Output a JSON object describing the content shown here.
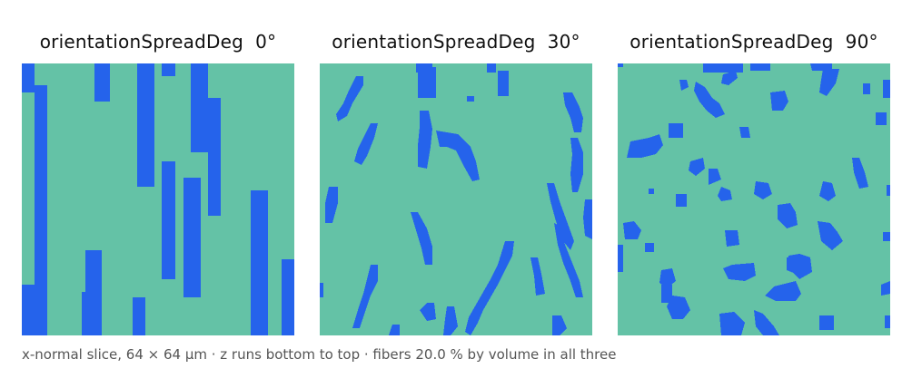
{
  "colors": {
    "matrix": "#64c2a6",
    "fiber": "#2563eb"
  },
  "panels": [
    {
      "title": "orientationSpreadDeg  0°"
    },
    {
      "title": "orientationSpreadDeg  30°"
    },
    {
      "title": "orientationSpreadDeg  90°"
    }
  ],
  "caption": "x-normal slice, 64 × 64 µm · z runs bottom to top · fibers 20.0 % by volume in all three"
}
